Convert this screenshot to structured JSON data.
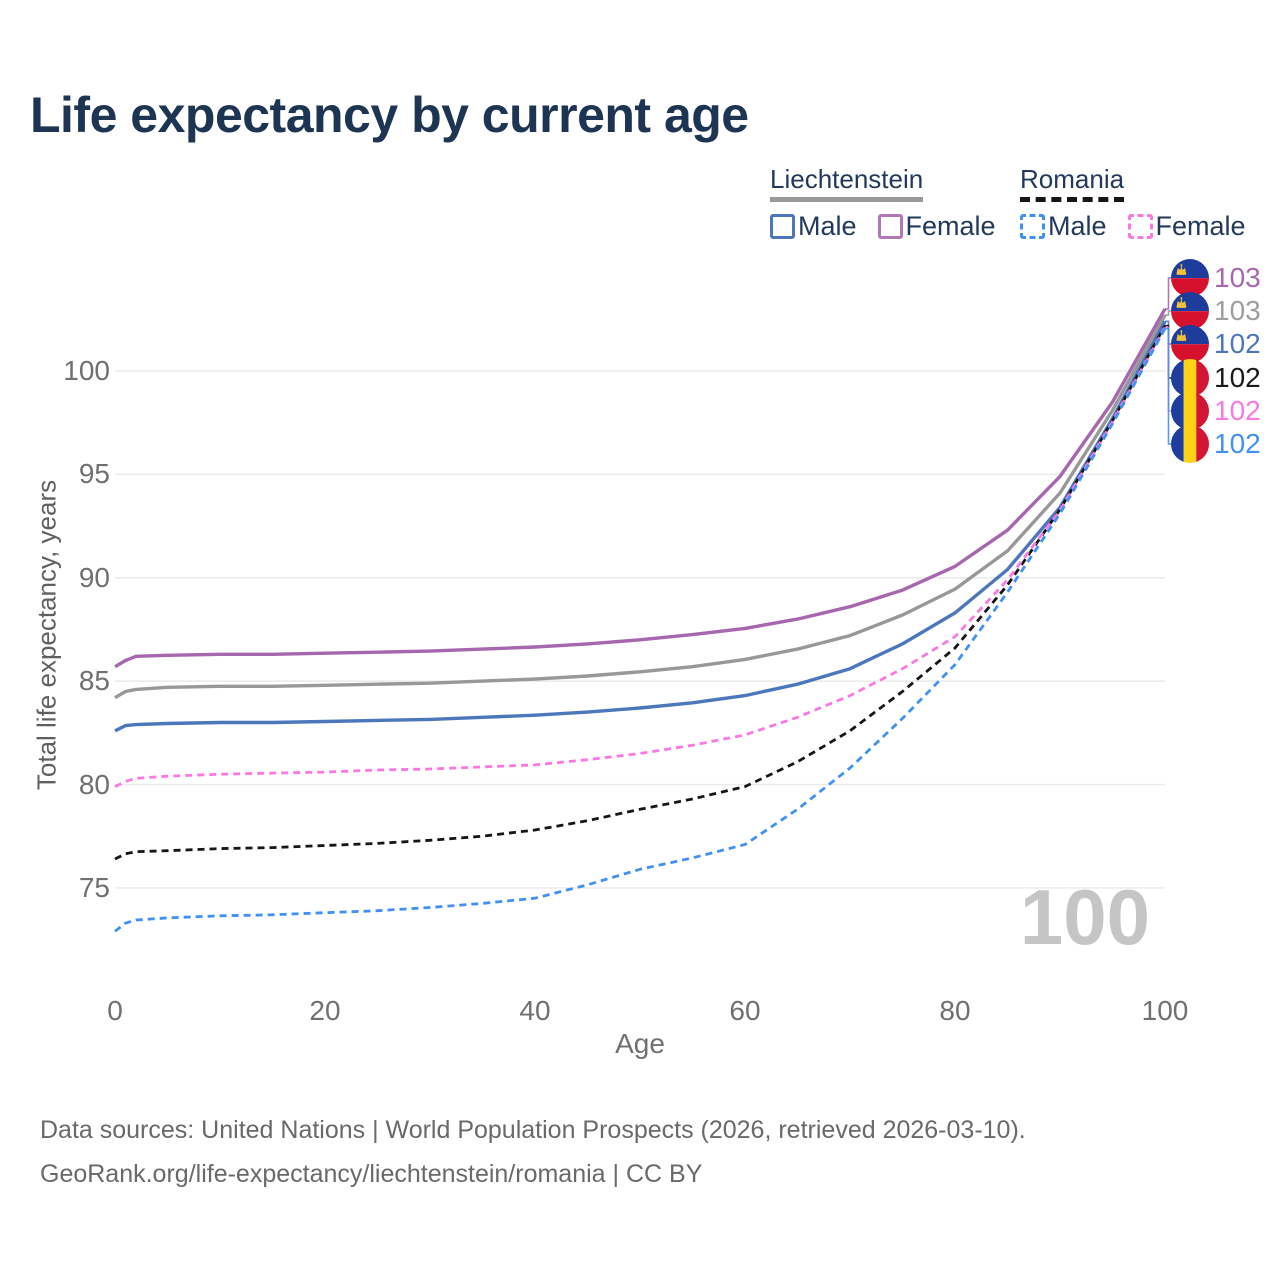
{
  "title": "Life expectancy by current age",
  "legend": {
    "groups": [
      {
        "country": "Liechtenstein",
        "line_style": "solid",
        "underline_color": "#9a9a9a",
        "items": [
          {
            "label": "Male",
            "color": "#4d77bd",
            "dashed": false
          },
          {
            "label": "Female",
            "color": "#b178b8",
            "dashed": false
          }
        ]
      },
      {
        "country": "Romania",
        "line_style": "dashed",
        "underline_color": "#161616",
        "items": [
          {
            "label": "Male",
            "color": "#4190f4",
            "dashed": true
          },
          {
            "label": "Female",
            "color": "#fa78e2",
            "dashed": true
          }
        ]
      }
    ]
  },
  "chart_data": {
    "type": "line",
    "title": "Life expectancy by current age",
    "xlabel": "Age",
    "ylabel": "Total life expectancy, years",
    "xlim": [
      0,
      100
    ],
    "ylim": [
      72.5,
      103.2
    ],
    "xticks": [
      0,
      20,
      40,
      60,
      80,
      100
    ],
    "yticks": [
      75,
      80,
      85,
      90,
      95,
      100
    ],
    "grid": true,
    "legend_position": "top-right",
    "watermark": "100",
    "x": [
      0,
      1,
      2,
      5,
      10,
      15,
      20,
      25,
      30,
      35,
      40,
      45,
      50,
      55,
      60,
      65,
      70,
      75,
      80,
      85,
      90,
      95,
      100
    ],
    "series": [
      {
        "name": "Liechtenstein Female",
        "color": "#a767ae",
        "dashed": false,
        "end_label": "103",
        "values": [
          85.7,
          86.0,
          86.2,
          86.25,
          86.3,
          86.3,
          86.35,
          86.4,
          86.45,
          86.55,
          86.65,
          86.8,
          87.0,
          87.25,
          87.55,
          88.0,
          88.6,
          89.4,
          90.55,
          92.3,
          94.9,
          98.5,
          103.0
        ]
      },
      {
        "name": "Liechtenstein Both sexes",
        "color": "#989898",
        "dashed": false,
        "end_label": "103",
        "values": [
          84.2,
          84.5,
          84.6,
          84.7,
          84.75,
          84.75,
          84.8,
          84.85,
          84.9,
          85.0,
          85.1,
          85.25,
          85.45,
          85.7,
          86.05,
          86.55,
          87.2,
          88.2,
          89.45,
          91.3,
          94.1,
          98.1,
          102.7
        ]
      },
      {
        "name": "Liechtenstein Male",
        "color": "#4d77bd",
        "dashed": false,
        "end_label": "102",
        "values": [
          82.6,
          82.85,
          82.9,
          82.95,
          83.0,
          83.0,
          83.05,
          83.1,
          83.15,
          83.25,
          83.35,
          83.5,
          83.7,
          83.95,
          84.3,
          84.85,
          85.6,
          86.8,
          88.3,
          90.4,
          93.4,
          97.7,
          102.4
        ]
      },
      {
        "name": "Romania Both sexes",
        "color": "#161616",
        "dashed": true,
        "end_label": "102",
        "values": [
          76.4,
          76.65,
          76.75,
          76.8,
          76.9,
          76.95,
          77.05,
          77.15,
          77.3,
          77.5,
          77.8,
          78.25,
          78.8,
          79.3,
          79.9,
          81.1,
          82.6,
          84.5,
          86.6,
          89.65,
          93.3,
          97.6,
          102.2
        ]
      },
      {
        "name": "Romania Female",
        "color": "#fa78e2",
        "dashed": true,
        "end_label": "102",
        "values": [
          79.9,
          80.15,
          80.3,
          80.4,
          80.5,
          80.55,
          80.6,
          80.7,
          80.75,
          80.85,
          80.95,
          81.2,
          81.5,
          81.9,
          82.4,
          83.25,
          84.3,
          85.6,
          87.15,
          89.9,
          93.25,
          97.55,
          102.1
        ]
      },
      {
        "name": "Romania Male",
        "color": "#4190f4",
        "dashed": true,
        "end_label": "102",
        "values": [
          72.9,
          73.3,
          73.45,
          73.55,
          73.65,
          73.7,
          73.8,
          73.9,
          74.05,
          74.25,
          74.5,
          75.15,
          75.9,
          76.45,
          77.1,
          78.8,
          80.8,
          83.2,
          85.8,
          89.3,
          93.1,
          97.45,
          102.05
        ]
      }
    ]
  },
  "right_labels": [
    {
      "value": "103",
      "color": "#a767ae",
      "flag": "liechtenstein"
    },
    {
      "value": "103",
      "color": "#9e9e9e",
      "flag": "liechtenstein"
    },
    {
      "value": "102",
      "color": "#4d77bd",
      "flag": "liechtenstein"
    },
    {
      "value": "102",
      "color": "#1a1a1a",
      "flag": "romania"
    },
    {
      "value": "102",
      "color": "#fa78e2",
      "flag": "romania"
    },
    {
      "value": "102",
      "color": "#4190f4",
      "flag": "romania"
    }
  ],
  "footer": {
    "line1": "Data sources: United Nations | World Population Prospects (2026, retrieved 2026-03-10).",
    "line2": "GeoRank.org/life-expectancy/liechtenstein/romania | CC BY"
  }
}
